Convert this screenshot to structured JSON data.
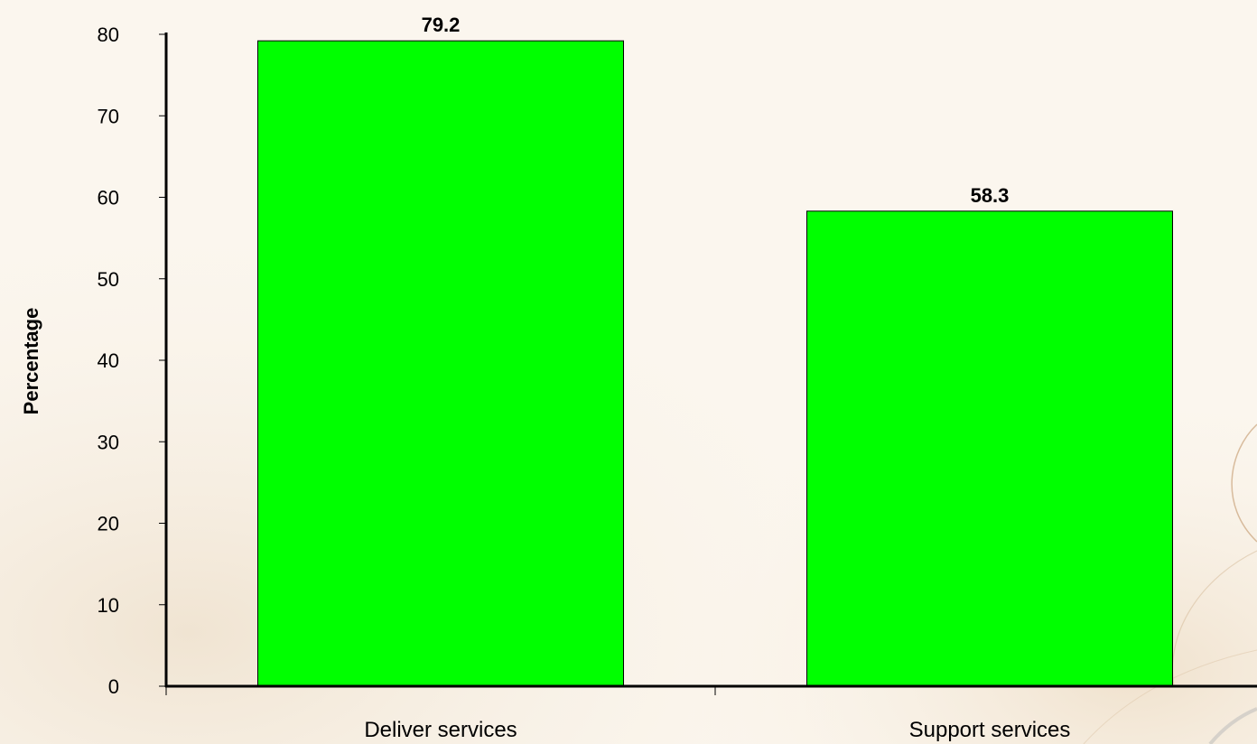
{
  "chart_data": {
    "type": "bar",
    "categories": [
      "Deliver services",
      "Support services"
    ],
    "values": [
      79.2,
      58.3
    ],
    "value_labels": [
      "79.2",
      "58.3"
    ],
    "title": "",
    "xlabel": "",
    "ylabel": "Percentage",
    "ylim": [
      0,
      80
    ],
    "yticks": [
      0,
      10,
      20,
      30,
      40,
      50,
      60,
      70,
      80
    ],
    "grid": false,
    "legend": "none",
    "colors": {
      "bar": "#00ff00",
      "bar_border": "#000000",
      "background": "#fbf6ee"
    }
  }
}
